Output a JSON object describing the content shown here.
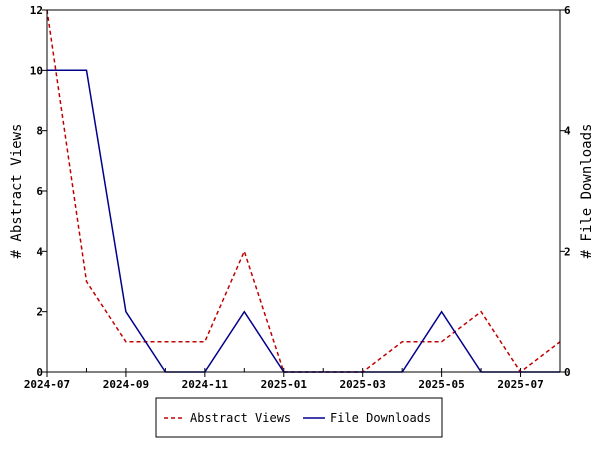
{
  "chart_data": {
    "type": "line",
    "x_axis": {
      "type": "date",
      "min": "2024-07",
      "max": "2025-08",
      "ticks": [
        "2024-07",
        "2024-09",
        "2024-11",
        "2025-01",
        "2025-03",
        "2025-05",
        "2025-07"
      ]
    },
    "y_left": {
      "label": "# Abstract Views",
      "min": 0,
      "max": 12,
      "ticks": [
        0,
        2,
        4,
        6,
        8,
        10,
        12
      ]
    },
    "y_right": {
      "label": "# File Downloads",
      "min": 0,
      "max": 6,
      "ticks": [
        0,
        2,
        4,
        6
      ]
    },
    "series": [
      {
        "name": "Abstract Views",
        "axis": "left",
        "color": "#c00000",
        "dash": "dashed",
        "x": [
          "2024-07",
          "2024-08",
          "2024-09",
          "2024-10",
          "2024-11",
          "2024-12",
          "2025-01",
          "2025-02",
          "2025-03",
          "2025-04",
          "2025-05",
          "2025-06",
          "2025-07",
          "2025-08"
        ],
        "y": [
          12,
          3,
          1,
          1,
          1,
          4,
          0,
          0,
          0,
          1,
          1,
          2,
          0,
          1
        ]
      },
      {
        "name": "File Downloads",
        "axis": "right",
        "color": "#00008b",
        "dash": "solid",
        "x": [
          "2024-07",
          "2024-08",
          "2024-09",
          "2024-10",
          "2024-11",
          "2024-12",
          "2025-01",
          "2025-02",
          "2025-03",
          "2025-04",
          "2025-05",
          "2025-06",
          "2025-07",
          "2025-08"
        ],
        "y": [
          5,
          5,
          1,
          0,
          0,
          1,
          0,
          0,
          0,
          0,
          1,
          0,
          0,
          0
        ]
      }
    ],
    "legend_position": "bottom-center",
    "grid": false
  }
}
